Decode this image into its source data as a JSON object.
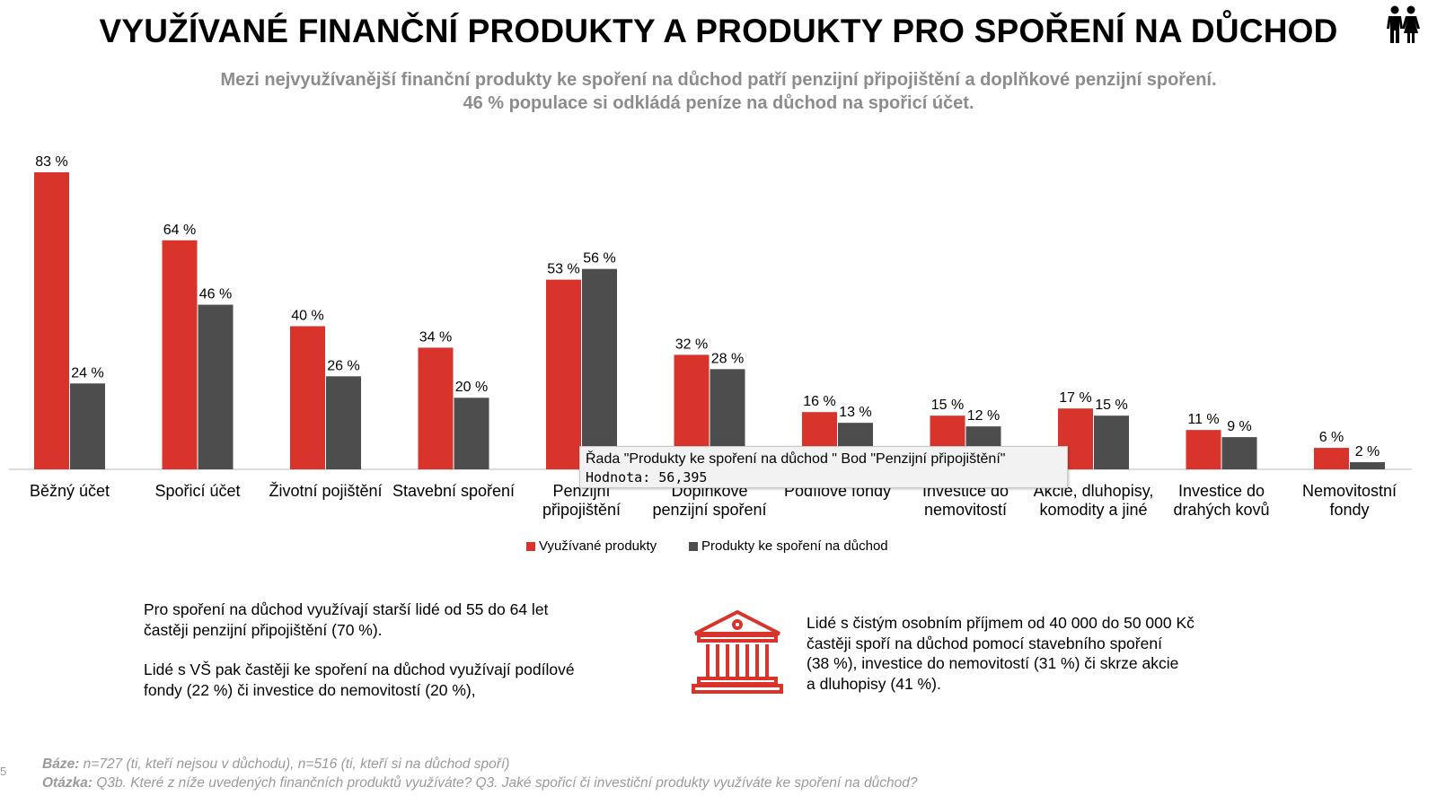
{
  "header": {
    "title": "VYUŽÍVANÉ FINANČNÍ PRODUKTY A PRODUKTY PRO SPOŘENÍ NA DŮCHOD",
    "subtitle_line1": "Mezi nejvyužívanější finanční produkty ke spoření na důchod patří penzijní připojištění a doplňkové penzijní spoření.",
    "subtitle_line2": "46 % populace si odkládá peníze na důchod na spořicí účet.",
    "icon": "people-icon"
  },
  "chart_data": {
    "type": "bar",
    "categories": [
      [
        "Běžný účet"
      ],
      [
        "Spořicí účet"
      ],
      [
        "Životní pojištění"
      ],
      [
        "Stavební spoření"
      ],
      [
        "Penzijní",
        "připojištění"
      ],
      [
        "Doplňkové",
        "penzijní spoření"
      ],
      [
        "Podílové fondy"
      ],
      [
        "Investice do",
        "nemovitostí"
      ],
      [
        "Akcie, dluhopisy,",
        "komodity a jiné"
      ],
      [
        "Investice do",
        "drahých kovů"
      ],
      [
        "Nemovitostní",
        "fondy"
      ]
    ],
    "series": [
      {
        "name": "Využívané produkty",
        "color": "#d9342b",
        "values": [
          83,
          64,
          40,
          34,
          53,
          32,
          16,
          15,
          17,
          11,
          6
        ]
      },
      {
        "name": "Produkty ke spoření na důchod",
        "color": "#4d4d4d",
        "values": [
          24,
          46,
          26,
          20,
          56,
          28,
          13,
          12,
          15,
          9,
          2
        ]
      }
    ],
    "value_suffix": " %",
    "ylim": [
      0,
      83
    ],
    "legend_position": "bottom",
    "grid": false
  },
  "tooltip": {
    "line1": "Řada \"Produkty ke spoření na důchod \" Bod \"Penzijní připojištění\"",
    "line2": "Hodnota: 56,395"
  },
  "notes": {
    "left_p1_line1": "Pro spoření na důchod využívají starší lidé od 55 do 64 let",
    "left_p1_line2": "častěji penzijní připojištění (70 %).",
    "left_p2_line1": "Lidé s VŠ pak častěji ke spoření na důchod využívají podílové",
    "left_p2_line2": "fondy (22 %) či investice do nemovitostí (20 %),",
    "right_line1": "Lidé s čistým osobním příjmem od 40 000 do 50 000 Kč",
    "right_line2": "častěji spoří na důchod pomocí stavebního spoření",
    "right_line3": "(38 %), investice do nemovitostí (31 %) či skrze akcie",
    "right_line4": "a dluhopisy (41 %).",
    "icon": "bank-icon",
    "icon_color": "#d9342b"
  },
  "footer": {
    "base_label": "Báze:",
    "base_text": " n=727 (ti, kteří nejsou v důchodu), n=516 (ti, kteří si na důchod spoří)",
    "question_label": "Otázka:",
    "question_text": " Q3b. Které z níže uvedených finančních produktů využíváte? Q3. Jaké spořicí či investiční produkty využíváte ke spoření na důchod?",
    "page_number": "5"
  }
}
